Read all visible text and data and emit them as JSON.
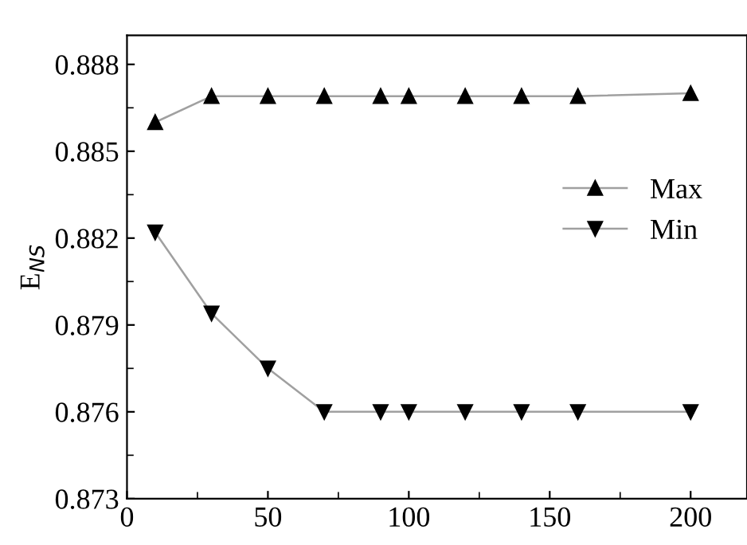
{
  "chart_data": {
    "type": "line",
    "ylabel": "E$_{NS}$",
    "x": [
      10,
      30,
      50,
      70,
      90,
      100,
      120,
      140,
      160,
      200
    ],
    "series": [
      {
        "name": "Max",
        "color": "#000000",
        "marker": "triangle",
        "values": [
          0.886,
          0.8869,
          0.8869,
          0.8869,
          0.8869,
          0.8869,
          0.8869,
          0.8869,
          0.8869,
          0.887
        ]
      },
      {
        "name": "Min",
        "color": "#000000",
        "marker": "triangle_down",
        "values": [
          0.8822,
          0.8794,
          0.8775,
          0.876,
          0.876,
          0.876,
          0.876,
          0.876,
          0.876,
          0.876
        ]
      }
    ],
    "xlim": [
      0,
      220
    ],
    "xticks": [
      0,
      50,
      100,
      150,
      200
    ],
    "ylim": [
      0.873,
      0.889
    ],
    "yticks": [
      {
        "value": 0.873,
        "label": "0.873"
      },
      {
        "value": 0.876,
        "label": "0.876"
      },
      {
        "value": 0.879,
        "label": "0.879"
      },
      {
        "value": 0.882,
        "label": "0.882"
      },
      {
        "value": 0.885,
        "label": "0.885"
      },
      {
        "value": 0.888,
        "label": "0.888"
      }
    ],
    "grid": false,
    "legend": "right"
  }
}
